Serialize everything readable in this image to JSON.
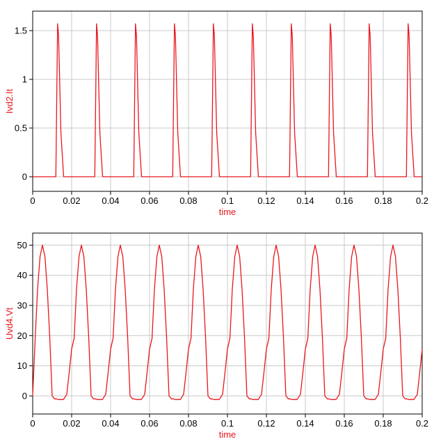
{
  "chart_data": [
    {
      "type": "line",
      "xlabel": "time",
      "ylabel": "Ivd2.It",
      "xlim": [
        0,
        0.2
      ],
      "ylim": [
        -0.15,
        1.7
      ],
      "xticks": [
        0,
        0.02,
        0.04,
        0.06,
        0.08,
        0.1,
        0.12,
        0.14,
        0.16,
        0.18,
        0.2
      ],
      "xtick_labels": [
        "0",
        "0.02",
        "0.04",
        "0.06",
        "0.08",
        "0.1",
        "0.12",
        "0.14",
        "0.16",
        "0.18",
        "0.2"
      ],
      "yticks": [
        0,
        0.5,
        1,
        1.5
      ],
      "ytick_labels": [
        "0",
        "0.5",
        "1",
        "1.5"
      ],
      "grid": true,
      "line_color": "#e8161b",
      "label_color": "#e8161b",
      "series": [
        {
          "x": [
            0,
            0.0119,
            0.0128,
            0.0133,
            0.0145,
            0.0159,
            0.0319,
            0.0328,
            0.0333,
            0.0345,
            0.0359,
            0.0519,
            0.0528,
            0.0533,
            0.0545,
            0.0559,
            0.0719,
            0.0728,
            0.0733,
            0.0745,
            0.0759,
            0.0919,
            0.0928,
            0.0933,
            0.0945,
            0.0959,
            0.1119,
            0.1128,
            0.1133,
            0.1145,
            0.1159,
            0.1319,
            0.1328,
            0.1333,
            0.1345,
            0.1359,
            0.1519,
            0.1528,
            0.1533,
            0.1545,
            0.1559,
            0.1719,
            0.1728,
            0.1733,
            0.1745,
            0.1759,
            0.1919,
            0.1928,
            0.1933,
            0.1945,
            0.1959,
            0.2
          ],
          "y": [
            0,
            0,
            1.57,
            1.45,
            0.45,
            0,
            0,
            1.57,
            1.45,
            0.45,
            0,
            0,
            1.57,
            1.45,
            0.45,
            0,
            0,
            1.57,
            1.45,
            0.45,
            0,
            0,
            1.57,
            1.45,
            0.45,
            0,
            0,
            1.57,
            1.45,
            0.45,
            0,
            0,
            1.57,
            1.45,
            0.45,
            0,
            0,
            1.57,
            1.45,
            0.45,
            0,
            0,
            1.57,
            1.45,
            0.45,
            0,
            0,
            1.57,
            1.45,
            0.45,
            0,
            0
          ]
        }
      ]
    },
    {
      "type": "line",
      "xlabel": "time",
      "ylabel": "Uvd4.Vt",
      "xlim": [
        0,
        0.2
      ],
      "ylim": [
        -6,
        54
      ],
      "xticks": [
        0,
        0.02,
        0.04,
        0.06,
        0.08,
        0.1,
        0.12,
        0.14,
        0.16,
        0.18,
        0.2
      ],
      "xtick_labels": [
        "0",
        "0.02",
        "0.04",
        "0.06",
        "0.08",
        "0.1",
        "0.12",
        "0.14",
        "0.16",
        "0.18",
        "0.2"
      ],
      "yticks": [
        0,
        10,
        20,
        30,
        40,
        50
      ],
      "ytick_labels": [
        "0",
        "10",
        "20",
        "30",
        "40",
        "50"
      ],
      "grid": true,
      "line_color": "#e8161b",
      "label_color": "#e8161b",
      "series": [
        {
          "x": [
            0,
            0.0013,
            0.0025,
            0.0038,
            0.005,
            0.0063,
            0.0075,
            0.0088,
            0.01,
            0.0113,
            0.0122,
            0.013,
            0.0158,
            0.0175,
            0.0188,
            0.02,
            0.0213,
            0.0225,
            0.0238,
            0.025,
            0.0263,
            0.0275,
            0.0288,
            0.03,
            0.0313,
            0.0322,
            0.033,
            0.0358,
            0.0375,
            0.0388,
            0.04,
            0.0413,
            0.0425,
            0.0438,
            0.045,
            0.0463,
            0.0475,
            0.0488,
            0.05,
            0.0513,
            0.0522,
            0.053,
            0.0558,
            0.0575,
            0.0588,
            0.06,
            0.0613,
            0.0625,
            0.0638,
            0.065,
            0.0663,
            0.0675,
            0.0688,
            0.07,
            0.0713,
            0.0722,
            0.073,
            0.0758,
            0.0775,
            0.0788,
            0.08,
            0.0813,
            0.0825,
            0.0838,
            0.085,
            0.0863,
            0.0875,
            0.0888,
            0.09,
            0.0913,
            0.0922,
            0.093,
            0.0958,
            0.0975,
            0.0988,
            0.1,
            0.1013,
            0.1025,
            0.1038,
            0.105,
            0.1063,
            0.1075,
            0.1088,
            0.11,
            0.1113,
            0.1122,
            0.113,
            0.1158,
            0.1175,
            0.1188,
            0.12,
            0.1213,
            0.1225,
            0.1238,
            0.125,
            0.1263,
            0.1275,
            0.1288,
            0.13,
            0.1313,
            0.1322,
            0.133,
            0.1358,
            0.1375,
            0.1388,
            0.14,
            0.1413,
            0.1425,
            0.1438,
            0.145,
            0.1463,
            0.1475,
            0.1488,
            0.15,
            0.1513,
            0.1522,
            0.153,
            0.1558,
            0.1575,
            0.1588,
            0.16,
            0.1613,
            0.1625,
            0.1638,
            0.165,
            0.1663,
            0.1675,
            0.1688,
            0.17,
            0.1713,
            0.1722,
            0.173,
            0.1758,
            0.1775,
            0.1788,
            0.18,
            0.1813,
            0.1825,
            0.1838,
            0.185,
            0.1863,
            0.1875,
            0.1888,
            0.19,
            0.1913,
            0.1922,
            0.193,
            0.1958,
            0.1975,
            0.1988,
            0.2
          ],
          "y": [
            0,
            19.1,
            35.4,
            46.2,
            50,
            46.2,
            35.4,
            19.1,
            0,
            -1,
            -1,
            -1.2,
            -1.2,
            0.5,
            8,
            15.5,
            19.1,
            35.4,
            46.2,
            50,
            46.2,
            35.4,
            19.1,
            0,
            -1,
            -1,
            -1.2,
            -1.2,
            0.5,
            8,
            15.5,
            19.1,
            35.4,
            46.2,
            50,
            46.2,
            35.4,
            19.1,
            0,
            -1,
            -1,
            -1.2,
            -1.2,
            0.5,
            8,
            15.5,
            19.1,
            35.4,
            46.2,
            50,
            46.2,
            35.4,
            19.1,
            0,
            -1,
            -1,
            -1.2,
            -1.2,
            0.5,
            8,
            15.5,
            19.1,
            35.4,
            46.2,
            50,
            46.2,
            35.4,
            19.1,
            0,
            -1,
            -1,
            -1.2,
            -1.2,
            0.5,
            8,
            15.5,
            19.1,
            35.4,
            46.2,
            50,
            46.2,
            35.4,
            19.1,
            0,
            -1,
            -1,
            -1.2,
            -1.2,
            0.5,
            8,
            15.5,
            19.1,
            35.4,
            46.2,
            50,
            46.2,
            35.4,
            19.1,
            0,
            -1,
            -1,
            -1.2,
            -1.2,
            0.5,
            8,
            15.5,
            19.1,
            35.4,
            46.2,
            50,
            46.2,
            35.4,
            19.1,
            0,
            -1,
            -1,
            -1.2,
            -1.2,
            0.5,
            8,
            15.5,
            19.1,
            35.4,
            46.2,
            50,
            46.2,
            35.4,
            19.1,
            0,
            -1,
            -1,
            -1.2,
            -1.2,
            0.5,
            8,
            15.5,
            19.1,
            35.4,
            46.2,
            50,
            46.2,
            35.4,
            19.1,
            0,
            -1,
            -1,
            -1.2,
            -1.2,
            0.5,
            8,
            15.5
          ]
        }
      ]
    }
  ]
}
